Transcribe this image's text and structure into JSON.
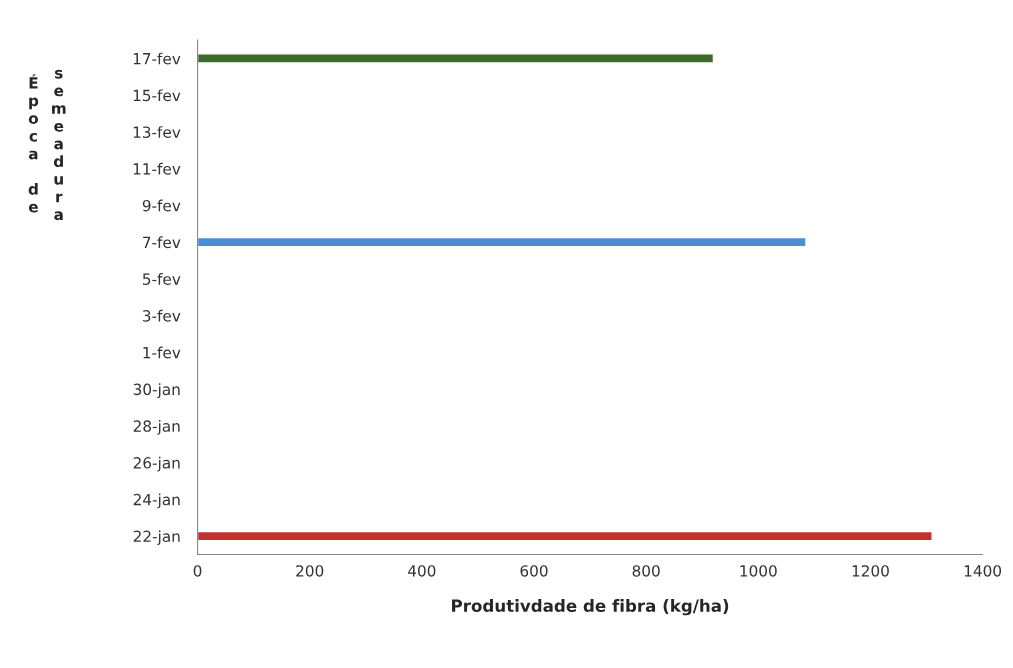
{
  "chart_data": {
    "type": "bar",
    "orientation": "horizontal",
    "xlabel": "Produtivdade de fibra (kg/ha)",
    "ylabel": "Época de semeadura",
    "categories": [
      "17-fev",
      "15-fev",
      "13-fev",
      "11-fev",
      "9-fev",
      "7-fev",
      "5-fev",
      "3-fev",
      "1-fev",
      "30-jan",
      "28-jan",
      "26-jan",
      "24-jan",
      "22-jan"
    ],
    "values": [
      920,
      null,
      null,
      null,
      null,
      1085,
      null,
      null,
      null,
      null,
      null,
      null,
      null,
      1310
    ],
    "colors": [
      "#3e6b2c",
      null,
      null,
      null,
      null,
      "#4a8fd6",
      null,
      null,
      null,
      null,
      null,
      null,
      null,
      "#c0322d"
    ],
    "xlim": [
      0,
      1400
    ],
    "xticks": [
      0,
      200,
      400,
      600,
      800,
      1000,
      1200,
      1400
    ],
    "grid": false,
    "legend": false
  }
}
